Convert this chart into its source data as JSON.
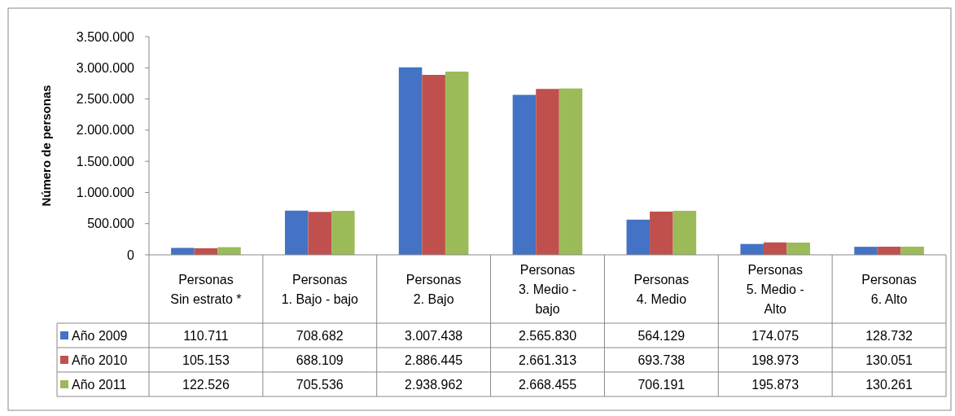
{
  "chart_data": {
    "type": "bar",
    "ylabel": "Número de personas",
    "categories": [
      "Personas\nSin estrato *",
      "Personas\n1. Bajo - bajo",
      "Personas\n2. Bajo",
      "Personas\n3. Medio -\nbajo",
      "Personas\n4. Medio",
      "Personas\n5. Medio -\nAlto",
      "Personas\n6. Alto"
    ],
    "series": [
      {
        "name": "Año 2009",
        "color": "#4472c4",
        "values": [
          110711,
          708682,
          3007438,
          2565830,
          564129,
          174075,
          128732
        ],
        "value_labels": [
          "110.711",
          "708.682",
          "3.007.438",
          "2.565.830",
          "564.129",
          "174.075",
          "128.732"
        ]
      },
      {
        "name": "Año 2010",
        "color": "#c0504d",
        "values": [
          105153,
          688109,
          2886445,
          2661313,
          693738,
          198973,
          130051
        ],
        "value_labels": [
          "105.153",
          "688.109",
          "2.886.445",
          "2.661.313",
          "693.738",
          "198.973",
          "130.051"
        ]
      },
      {
        "name": "Año 2011",
        "color": "#9bbb59",
        "values": [
          122526,
          705536,
          2938962,
          2668455,
          706191,
          195873,
          130261
        ],
        "value_labels": [
          "122.526",
          "705.536",
          "2.938.962",
          "2.668.455",
          "706.191",
          "195.873",
          "130.261"
        ]
      }
    ],
    "ylim": [
      0,
      3500000
    ],
    "yticks": [
      0,
      {
        "value": 500000,
        "label": "500.000"
      },
      {
        "value": 1000000,
        "label": "1.000.000"
      },
      {
        "value": 1500000,
        "label": "1.500.000"
      },
      {
        "value": 2000000,
        "label": "2.000.000"
      },
      {
        "value": 2500000,
        "label": "2.500.000"
      },
      {
        "value": 3000000,
        "label": "3.000.000"
      },
      {
        "value": 3500000,
        "label": "3.500.000"
      }
    ],
    "legend": "bottom left"
  }
}
